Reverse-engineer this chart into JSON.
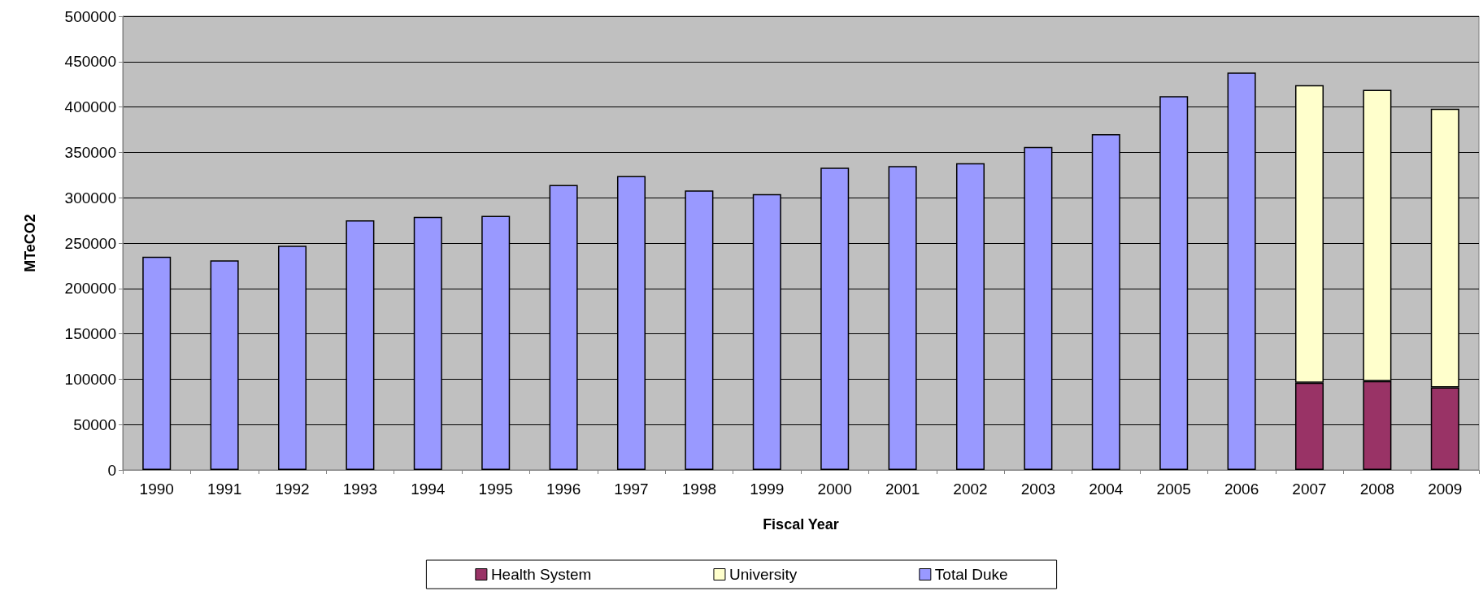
{
  "chart_data": {
    "type": "bar",
    "xlabel": "Fiscal Year",
    "ylabel": "MTeCO2",
    "stacked": true,
    "categories": [
      "1990",
      "1991",
      "1992",
      "1993",
      "1994",
      "1995",
      "1996",
      "1997",
      "1998",
      "1999",
      "2000",
      "2001",
      "2002",
      "2003",
      "2004",
      "2005",
      "2006",
      "2007",
      "2008",
      "2009"
    ],
    "series": [
      {
        "name": "Health System",
        "color": "#993366",
        "values": [
          null,
          null,
          null,
          null,
          null,
          null,
          null,
          null,
          null,
          null,
          null,
          null,
          null,
          null,
          null,
          null,
          null,
          96000,
          98000,
          91000
        ]
      },
      {
        "name": "University",
        "color": "#ffffcc",
        "values": [
          null,
          null,
          null,
          null,
          null,
          null,
          null,
          null,
          null,
          null,
          null,
          null,
          null,
          null,
          null,
          null,
          null,
          328000,
          321000,
          307000
        ]
      },
      {
        "name": "Total Duke",
        "color": "#9999ff",
        "values": [
          235000,
          231000,
          247000,
          275000,
          279000,
          280000,
          314000,
          324000,
          308000,
          304000,
          333000,
          335000,
          338000,
          356000,
          370000,
          412000,
          438000,
          null,
          null,
          null
        ]
      }
    ],
    "ylim": [
      0,
      500000
    ],
    "yticks": [
      0,
      50000,
      100000,
      150000,
      200000,
      250000,
      300000,
      350000,
      400000,
      450000,
      500000
    ],
    "grid": "y",
    "legend": "bottom"
  }
}
